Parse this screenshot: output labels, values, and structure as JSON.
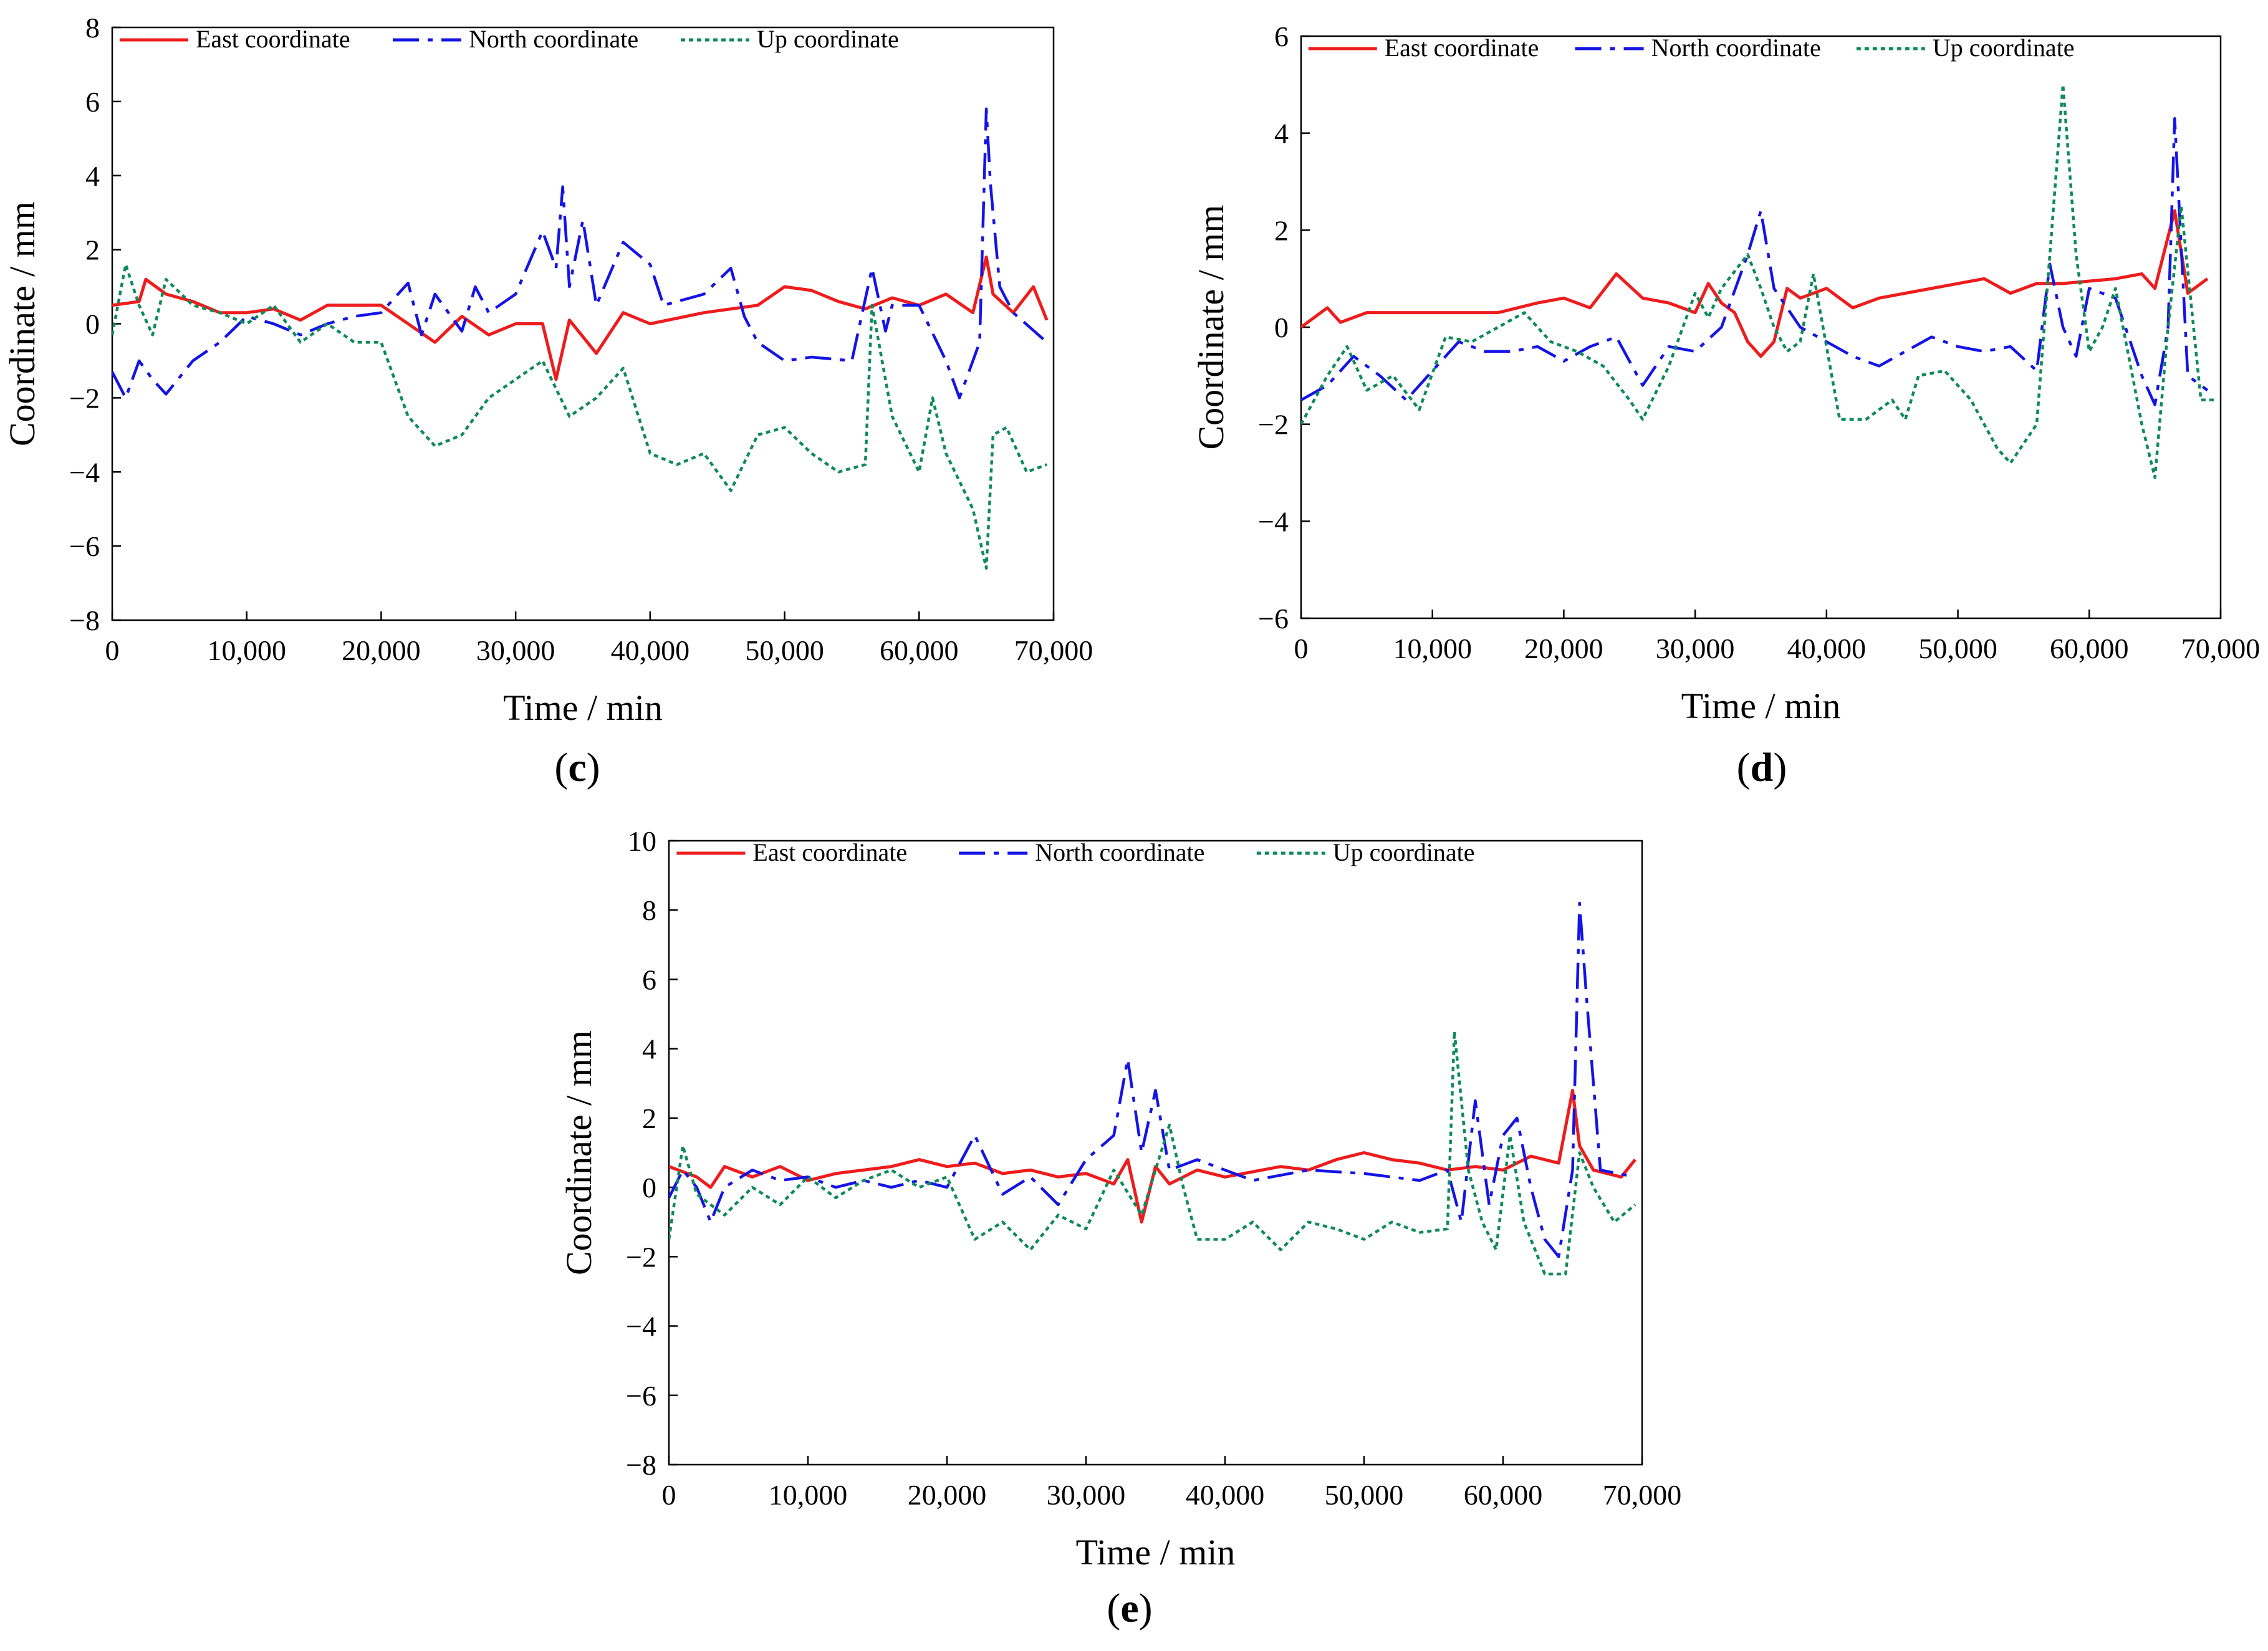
{
  "figure": {
    "panel_labels": [
      {
        "open": "(",
        "letter": "c",
        "close": ")"
      },
      {
        "open": "(",
        "letter": "d",
        "close": ")"
      },
      {
        "open": "(",
        "letter": "e",
        "close": ")"
      }
    ]
  },
  "colors": {
    "east": "#ee1c1c",
    "north": "#1414e6",
    "up": "#0e8a5a"
  },
  "chart_data": [
    {
      "id": "c",
      "type": "line",
      "xlabel": "Time / min",
      "ylabel": "Coordinate / mm",
      "xlim": [
        0,
        70000
      ],
      "ylim": [
        -8,
        8
      ],
      "xticks": [
        "0",
        "10,000",
        "20,000",
        "30,000",
        "40,000",
        "50,000",
        "60,000",
        "70,000"
      ],
      "yticks": [
        "8",
        "6",
        "4",
        "2",
        "0",
        "−2",
        "−4",
        "−6",
        "−8"
      ],
      "legend_position": "top",
      "series": [
        {
          "name": "East coordinate",
          "style": "solid",
          "x": [
            0,
            2000,
            2500,
            4000,
            6000,
            8000,
            10000,
            12000,
            14000,
            16000,
            18000,
            20000,
            22000,
            24000,
            26000,
            28000,
            30000,
            32000,
            33000,
            34000,
            36000,
            38000,
            40000,
            44000,
            48000,
            50000,
            52000,
            54000,
            56000,
            58000,
            60000,
            62000,
            64000,
            65000,
            65500,
            67000,
            68500,
            69500
          ],
          "y": [
            0.5,
            0.6,
            1.2,
            0.8,
            0.6,
            0.3,
            0.3,
            0.4,
            0.1,
            0.5,
            0.5,
            0.5,
            0.0,
            -0.5,
            0.2,
            -0.3,
            0.0,
            0.0,
            -1.5,
            0.1,
            -0.8,
            0.3,
            0.0,
            0.3,
            0.5,
            1.0,
            0.9,
            0.6,
            0.4,
            0.7,
            0.5,
            0.8,
            0.3,
            1.8,
            0.8,
            0.3,
            1.0,
            0.1
          ]
        },
        {
          "name": "North coordinate",
          "style": "dashdot",
          "x": [
            0,
            1000,
            2000,
            3000,
            4000,
            6000,
            8000,
            10000,
            12000,
            14000,
            16000,
            18000,
            20000,
            22000,
            23000,
            24000,
            26000,
            27000,
            28000,
            30000,
            32000,
            33000,
            33500,
            34000,
            35000,
            36000,
            38000,
            40000,
            41000,
            44000,
            46000,
            47000,
            48000,
            50000,
            52000,
            55000,
            56500,
            57500,
            58000,
            60000,
            62000,
            63000,
            64500,
            65000,
            65300,
            66000,
            67000,
            69500
          ],
          "y": [
            -1.3,
            -2.0,
            -1.0,
            -1.5,
            -1.9,
            -1.0,
            -0.5,
            0.2,
            0.0,
            -0.3,
            0.0,
            0.2,
            0.3,
            1.1,
            -0.3,
            0.8,
            -0.2,
            1.0,
            0.3,
            0.8,
            2.5,
            1.5,
            3.7,
            1.0,
            2.8,
            0.5,
            2.2,
            1.6,
            0.5,
            0.8,
            1.5,
            0.2,
            -0.5,
            -1.0,
            -0.9,
            -1.0,
            1.5,
            -0.2,
            0.5,
            0.5,
            -1.0,
            -2.0,
            -0.5,
            5.8,
            3.8,
            1.0,
            0.3,
            -0.5
          ]
        },
        {
          "name": "Up coordinate",
          "style": "dotted",
          "x": [
            0,
            1000,
            2000,
            3000,
            4000,
            6000,
            8000,
            10000,
            12000,
            14000,
            16000,
            18000,
            20000,
            22000,
            24000,
            26000,
            28000,
            30000,
            32000,
            34000,
            36000,
            38000,
            40000,
            42000,
            44000,
            46000,
            48000,
            50000,
            52000,
            54000,
            56000,
            56500,
            58000,
            60000,
            61000,
            62000,
            64000,
            65000,
            65500,
            66500,
            68000,
            69500
          ],
          "y": [
            -0.3,
            1.6,
            0.5,
            -0.3,
            1.2,
            0.5,
            0.3,
            0.0,
            0.5,
            -0.5,
            0.0,
            -0.5,
            -0.5,
            -2.5,
            -3.3,
            -3.0,
            -2.0,
            -1.5,
            -1.0,
            -2.5,
            -2.0,
            -1.2,
            -3.5,
            -3.8,
            -3.5,
            -4.5,
            -3.0,
            -2.8,
            -3.5,
            -4.0,
            -3.8,
            0.5,
            -2.5,
            -4.0,
            -2.0,
            -3.5,
            -5.0,
            -6.6,
            -3.0,
            -2.8,
            -4.0,
            -3.8
          ]
        }
      ]
    },
    {
      "id": "d",
      "type": "line",
      "xlabel": "Time / min",
      "ylabel": "Coordinate / mm",
      "xlim": [
        0,
        70000
      ],
      "ylim": [
        -6,
        6
      ],
      "xticks": [
        "0",
        "10,000",
        "20,000",
        "30,000",
        "40,000",
        "50,000",
        "60,000",
        "70,000"
      ],
      "yticks": [
        "6",
        "4",
        "2",
        "0",
        "−2",
        "−4",
        "−6"
      ],
      "legend_position": "top",
      "series": [
        {
          "name": "East coordinate",
          "style": "solid",
          "x": [
            0,
            2000,
            3000,
            5000,
            10000,
            15000,
            18000,
            20000,
            22000,
            24000,
            26000,
            28000,
            30000,
            31000,
            32000,
            33000,
            34000,
            35000,
            36000,
            37000,
            38000,
            40000,
            42000,
            44000,
            46000,
            50000,
            52000,
            54000,
            56000,
            58000,
            62000,
            64000,
            65000,
            66500,
            67500,
            69000
          ],
          "y": [
            0.0,
            0.4,
            0.1,
            0.3,
            0.3,
            0.3,
            0.5,
            0.6,
            0.4,
            1.1,
            0.6,
            0.5,
            0.3,
            0.9,
            0.5,
            0.3,
            -0.3,
            -0.6,
            -0.3,
            0.8,
            0.6,
            0.8,
            0.4,
            0.6,
            0.7,
            0.9,
            1.0,
            0.7,
            0.9,
            0.9,
            1.0,
            1.1,
            0.8,
            2.4,
            0.7,
            1.0
          ]
        },
        {
          "name": "North coordinate",
          "style": "dashdot",
          "x": [
            0,
            2000,
            4000,
            6000,
            8000,
            10000,
            12000,
            14000,
            16000,
            18000,
            20000,
            22000,
            24000,
            26000,
            28000,
            30000,
            32000,
            34000,
            35000,
            36000,
            38000,
            40000,
            42000,
            44000,
            46000,
            48000,
            50000,
            52000,
            54000,
            56000,
            57000,
            58000,
            59000,
            60000,
            62000,
            64000,
            65000,
            66000,
            66500,
            67500,
            69000
          ],
          "y": [
            -1.5,
            -1.2,
            -0.6,
            -1.0,
            -1.5,
            -0.9,
            -0.3,
            -0.5,
            -0.5,
            -0.4,
            -0.7,
            -0.4,
            -0.2,
            -1.2,
            -0.4,
            -0.5,
            0.0,
            1.5,
            2.4,
            0.8,
            0.0,
            -0.3,
            -0.6,
            -0.8,
            -0.5,
            -0.2,
            -0.4,
            -0.5,
            -0.4,
            -0.9,
            1.3,
            0.0,
            -0.6,
            0.8,
            0.6,
            -1.0,
            -1.6,
            0.0,
            4.3,
            -1.0,
            -1.3
          ]
        },
        {
          "name": "Up coordinate",
          "style": "dotted",
          "x": [
            0,
            2000,
            3500,
            5000,
            7000,
            9000,
            11000,
            13000,
            15000,
            17000,
            19000,
            21000,
            23000,
            25000,
            26000,
            28000,
            30000,
            31000,
            32000,
            34000,
            35000,
            36000,
            37000,
            38000,
            39000,
            41000,
            43000,
            45000,
            46000,
            47000,
            49000,
            51000,
            53000,
            54000,
            56000,
            57000,
            58000,
            59000,
            60000,
            61000,
            62000,
            64000,
            65000,
            66000,
            67000,
            68500,
            69500
          ],
          "y": [
            -2.0,
            -1.0,
            -0.4,
            -1.3,
            -1.0,
            -1.7,
            -0.2,
            -0.3,
            0.0,
            0.3,
            -0.3,
            -0.5,
            -0.8,
            -1.5,
            -1.9,
            -0.8,
            0.7,
            0.2,
            0.8,
            1.5,
            0.8,
            0.0,
            -0.5,
            -0.3,
            1.1,
            -1.9,
            -1.9,
            -1.5,
            -1.9,
            -1.0,
            -0.9,
            -1.5,
            -2.5,
            -2.8,
            -2.0,
            1.5,
            5.0,
            1.5,
            -0.5,
            0.0,
            0.8,
            -2.0,
            -3.1,
            0.0,
            2.5,
            -1.5,
            -1.5
          ]
        }
      ]
    },
    {
      "id": "e",
      "type": "line",
      "xlabel": "Time / min",
      "ylabel": "Coordinate / mm",
      "xlim": [
        0,
        70000
      ],
      "ylim": [
        -8,
        10
      ],
      "xticks": [
        "0",
        "10,000",
        "20,000",
        "30,000",
        "40,000",
        "50,000",
        "60,000",
        "70,000"
      ],
      "yticks": [
        "10",
        "8",
        "6",
        "4",
        "2",
        "0",
        "−2",
        "−4",
        "−6",
        "−8"
      ],
      "legend_position": "top",
      "series": [
        {
          "name": "East coordinate",
          "style": "solid",
          "x": [
            0,
            2000,
            3000,
            4000,
            6000,
            8000,
            10000,
            12000,
            14000,
            16000,
            18000,
            20000,
            22000,
            24000,
            26000,
            28000,
            30000,
            32000,
            33000,
            34000,
            35000,
            36000,
            38000,
            40000,
            44000,
            46000,
            48000,
            50000,
            52000,
            54000,
            56000,
            58000,
            60000,
            62000,
            64000,
            65000,
            65500,
            66500,
            67500,
            68500,
            69500
          ],
          "y": [
            0.6,
            0.3,
            0.0,
            0.6,
            0.3,
            0.6,
            0.2,
            0.4,
            0.5,
            0.6,
            0.8,
            0.6,
            0.7,
            0.4,
            0.5,
            0.3,
            0.4,
            0.1,
            0.8,
            -1.0,
            0.6,
            0.1,
            0.5,
            0.3,
            0.6,
            0.5,
            0.8,
            1.0,
            0.8,
            0.7,
            0.5,
            0.6,
            0.5,
            0.9,
            0.7,
            2.8,
            1.2,
            0.5,
            0.4,
            0.3,
            0.8
          ]
        },
        {
          "name": "North coordinate",
          "style": "dashdot",
          "x": [
            0,
            1000,
            2000,
            3000,
            4000,
            6000,
            8000,
            10000,
            12000,
            14000,
            16000,
            18000,
            20000,
            22000,
            24000,
            26000,
            28000,
            30000,
            32000,
            33000,
            34000,
            35000,
            36000,
            38000,
            40000,
            42000,
            46000,
            50000,
            54000,
            56000,
            57000,
            58000,
            59000,
            60000,
            61000,
            62000,
            63000,
            64000,
            65000,
            65500,
            66000,
            67000,
            69500
          ],
          "y": [
            -0.3,
            0.5,
            0.0,
            -1.0,
            0.0,
            0.5,
            0.2,
            0.3,
            0.0,
            0.2,
            0.0,
            0.2,
            0.0,
            1.5,
            -0.2,
            0.3,
            -0.5,
            0.8,
            1.5,
            3.7,
            1.0,
            2.8,
            0.5,
            0.8,
            0.5,
            0.2,
            0.5,
            0.4,
            0.2,
            0.5,
            -1.0,
            2.5,
            -0.5,
            1.5,
            2.0,
            0.0,
            -1.5,
            -2.0,
            0.5,
            8.2,
            5.5,
            0.5,
            0.3
          ]
        },
        {
          "name": "Up coordinate",
          "style": "dotted",
          "x": [
            0,
            1000,
            2000,
            4000,
            6000,
            8000,
            10000,
            12000,
            14000,
            16000,
            18000,
            20000,
            22000,
            24000,
            26000,
            28000,
            30000,
            32000,
            34000,
            36000,
            37000,
            38000,
            40000,
            42000,
            44000,
            46000,
            48000,
            50000,
            52000,
            54000,
            56000,
            56500,
            57500,
            58500,
            59500,
            60500,
            61500,
            63000,
            64500,
            65500,
            66500,
            68000,
            69500
          ],
          "y": [
            -1.5,
            1.2,
            -0.2,
            -0.8,
            0.0,
            -0.5,
            0.3,
            -0.3,
            0.2,
            0.5,
            0.0,
            0.3,
            -1.5,
            -1.0,
            -1.8,
            -0.8,
            -1.2,
            0.5,
            -0.8,
            1.8,
            0.0,
            -1.5,
            -1.5,
            -1.0,
            -1.8,
            -1.0,
            -1.2,
            -1.5,
            -1.0,
            -1.3,
            -1.2,
            4.5,
            0.5,
            -1.0,
            -1.8,
            1.5,
            -1.0,
            -2.5,
            -2.5,
            1.0,
            0.0,
            -1.0,
            -0.5
          ]
        }
      ]
    }
  ]
}
